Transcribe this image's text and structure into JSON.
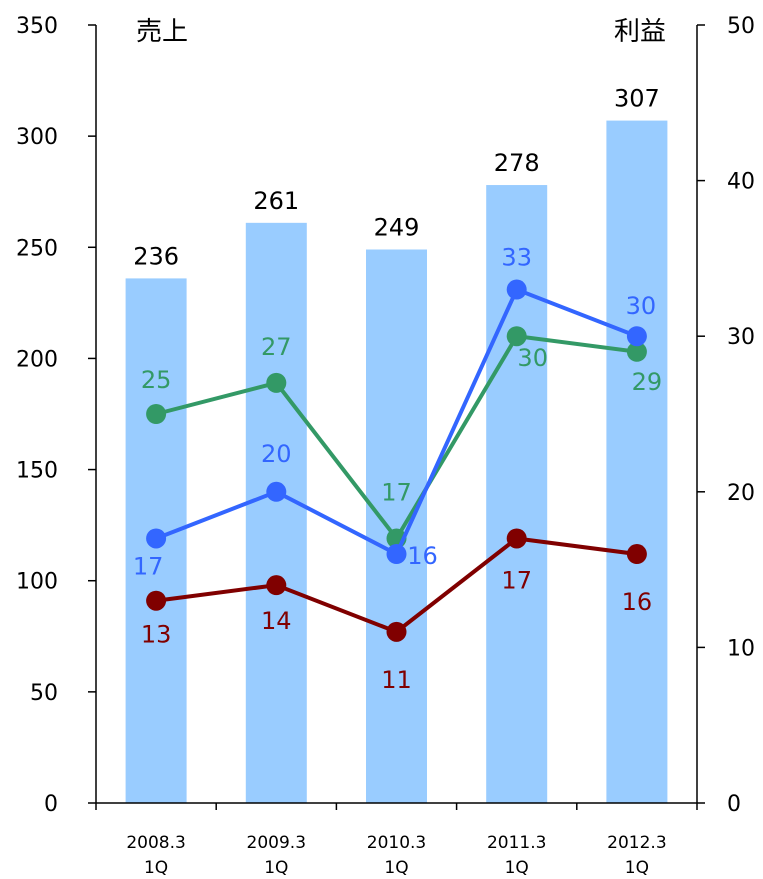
{
  "chart_data": {
    "type": "bar+line",
    "categories": [
      {
        "line1": "2008.3",
        "line2": "1Q"
      },
      {
        "line1": "2009.3",
        "line2": "1Q"
      },
      {
        "line1": "2010.3",
        "line2": "1Q"
      },
      {
        "line1": "2011.3",
        "line2": "1Q"
      },
      {
        "line1": "2012.3",
        "line2": "1Q"
      }
    ],
    "left_axis": {
      "title": "売上",
      "min": 0,
      "max": 350,
      "ticks": [
        0,
        50,
        100,
        150,
        200,
        250,
        300,
        350
      ]
    },
    "right_axis": {
      "title": "利益",
      "min": 0,
      "max": 50,
      "ticks": [
        0,
        10,
        20,
        30,
        40,
        50
      ]
    },
    "bars": {
      "values": [
        236,
        261,
        249,
        278,
        307
      ],
      "labels": [
        "236",
        "261",
        "249",
        "278",
        "307"
      ],
      "color": "#99CCFF",
      "axis": "left"
    },
    "lines": [
      {
        "values": [
          25,
          27,
          17,
          30,
          29
        ],
        "labels": [
          "25",
          "27",
          "17",
          "30",
          "29"
        ],
        "color": "#339966",
        "axis": "right"
      },
      {
        "values": [
          17,
          20,
          16,
          33,
          30
        ],
        "labels": [
          "17",
          "20",
          "16",
          "33",
          "30"
        ],
        "color": "#3366FF",
        "axis": "right"
      },
      {
        "values": [
          13,
          14,
          11,
          17,
          16
        ],
        "labels": [
          "13",
          "14",
          "11",
          "17",
          "16"
        ],
        "color": "#800000",
        "axis": "right"
      }
    ]
  }
}
